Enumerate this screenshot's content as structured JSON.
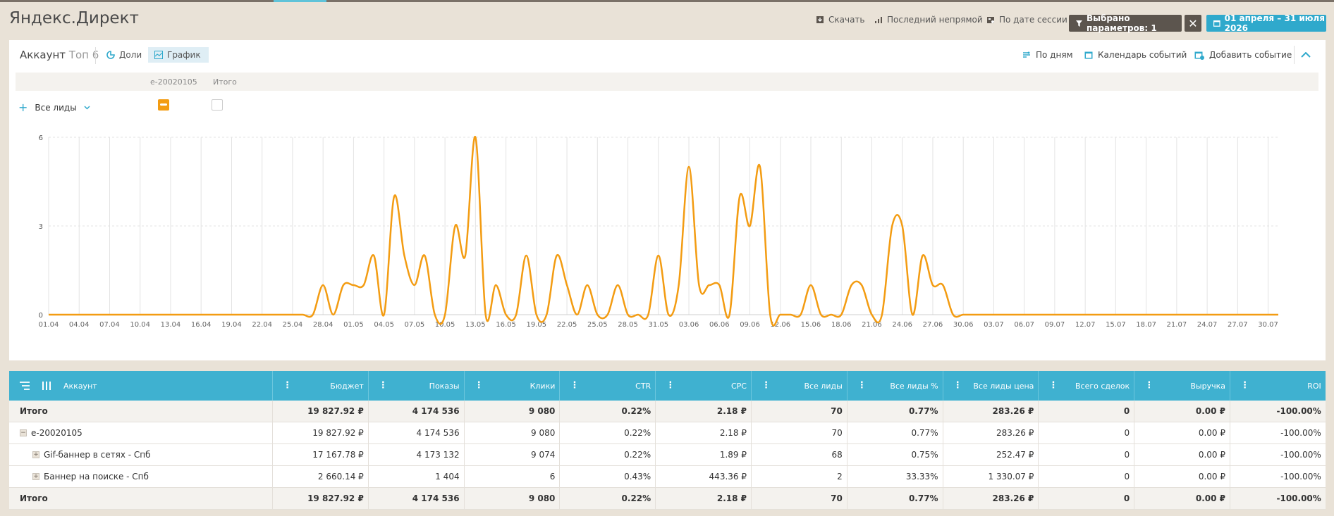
{
  "app": {
    "title": "Яндекс.Директ"
  },
  "header": {
    "download": "Скачать",
    "attribution": "Последний непрямой",
    "session": "По дате сессии",
    "params": "Выбрано параметров: 1",
    "close": "✕",
    "date_range": "01 апреля – 31 июля 2026"
  },
  "panel": {
    "title": "Аккаунт",
    "title_muted": "Топ 6",
    "tab_shares": "Доли",
    "tab_chart": "График",
    "by_days": "По дням",
    "event_calendar": "Календарь событий",
    "add_event": "Добавить событие",
    "legend_campaign": "e-20020105",
    "legend_total": "Итого",
    "metric": "Все лиды"
  },
  "colors": {
    "accent": "#2fa9cc",
    "series": "#f39c12",
    "header_dark": "#5c554e"
  },
  "chart_data": {
    "type": "line",
    "x": [
      "01.04",
      "02.04",
      "03.04",
      "04.04",
      "05.04",
      "06.04",
      "07.04",
      "08.04",
      "09.04",
      "10.04",
      "11.04",
      "12.04",
      "13.04",
      "14.04",
      "15.04",
      "16.04",
      "17.04",
      "18.04",
      "19.04",
      "20.04",
      "21.04",
      "22.04",
      "23.04",
      "24.04",
      "25.04",
      "26.04",
      "27.04",
      "28.04",
      "29.04",
      "30.04",
      "01.05",
      "02.05",
      "03.05",
      "04.05",
      "05.05",
      "06.05",
      "07.05",
      "08.05",
      "09.05",
      "10.05",
      "11.05",
      "12.05",
      "13.05",
      "14.05",
      "15.05",
      "16.05",
      "17.05",
      "18.05",
      "19.05",
      "20.05",
      "21.05",
      "22.05",
      "23.05",
      "24.05",
      "25.05",
      "26.05",
      "27.05",
      "28.05",
      "29.05",
      "30.05",
      "31.05",
      "01.06",
      "02.06",
      "03.06",
      "04.06",
      "05.06",
      "06.06",
      "07.06",
      "08.06",
      "09.06",
      "10.06",
      "11.06",
      "12.06",
      "13.06",
      "14.06",
      "15.06",
      "16.06",
      "17.06",
      "18.06",
      "19.06",
      "20.06",
      "21.06",
      "22.06",
      "23.06",
      "24.06",
      "25.06",
      "26.06",
      "27.06",
      "28.06",
      "29.06",
      "30.06",
      "01.07",
      "02.07",
      "03.07",
      "04.07",
      "05.07",
      "06.07",
      "07.07",
      "08.07",
      "09.07",
      "10.07",
      "11.07",
      "12.07",
      "13.07",
      "14.07",
      "15.07",
      "16.07",
      "17.07",
      "18.07",
      "19.07",
      "20.07",
      "21.07",
      "22.07",
      "23.07",
      "24.07",
      "25.07",
      "26.07",
      "27.07",
      "28.07",
      "29.07",
      "30.07",
      "31.07"
    ],
    "tick_labels": [
      "01.04",
      "04.04",
      "07.04",
      "10.04",
      "13.04",
      "16.04",
      "19.04",
      "22.04",
      "25.04",
      "28.04",
      "01.05",
      "04.05",
      "07.05",
      "10.05",
      "13.05",
      "16.05",
      "19.05",
      "22.05",
      "25.05",
      "28.05",
      "31.05",
      "03.06",
      "06.06",
      "09.06",
      "12.06",
      "15.06",
      "18.06",
      "21.06",
      "24.06",
      "27.06",
      "30.06",
      "03.07",
      "06.07",
      "09.07",
      "12.07",
      "15.07",
      "18.07",
      "21.07",
      "24.07",
      "27.07",
      "30.07"
    ],
    "series": [
      {
        "values": [
          0,
          0,
          0,
          0,
          0,
          0,
          0,
          0,
          0,
          0,
          0,
          0,
          0,
          0,
          0,
          0,
          0,
          0,
          0,
          0,
          0,
          0,
          0,
          0,
          0,
          0,
          0,
          1,
          0,
          1,
          1,
          1,
          2,
          0,
          4,
          2,
          1,
          2,
          0,
          0,
          3,
          2,
          6,
          0,
          1,
          0,
          0,
          2,
          0,
          0,
          2,
          1,
          0,
          1,
          0,
          0,
          1,
          0,
          0,
          0,
          2,
          0,
          1,
          5,
          1,
          1,
          1,
          0,
          4,
          3,
          5,
          0,
          0,
          0,
          0,
          1,
          0,
          0,
          0,
          1,
          1,
          0,
          0,
          3,
          3,
          0,
          2,
          1,
          1,
          0,
          0,
          0,
          0,
          0,
          0,
          0,
          0,
          0,
          0,
          0,
          0,
          0,
          0,
          0,
          0,
          0,
          0,
          0,
          0,
          0,
          0,
          0,
          0,
          0,
          0,
          0,
          0,
          0,
          0,
          0,
          0,
          0
        ]
      }
    ],
    "y_ticks": [
      "0",
      "3",
      "6"
    ],
    "ylim": [
      0,
      6
    ],
    "grid": true
  },
  "table": {
    "columns": [
      "Аккаунт",
      "Бюджет",
      "Показы",
      "Клики",
      "CTR",
      "CPC",
      "Все лиды",
      "Все лиды %",
      "Все лиды цена",
      "Всего сделок",
      "Выручка",
      "ROI"
    ],
    "rows": [
      {
        "kind": "total",
        "name": "Итого",
        "cells": [
          "19 827.92 ₽",
          "4 174 536",
          "9 080",
          "0.22%",
          "2.18 ₽",
          "70",
          "0.77%",
          "283.26 ₽",
          "0",
          "0.00 ₽",
          "-100.00%"
        ]
      },
      {
        "kind": "group",
        "name": "e-20020105",
        "cells": [
          "19 827.92 ₽",
          "4 174 536",
          "9 080",
          "0.22%",
          "2.18 ₽",
          "70",
          "0.77%",
          "283.26 ₽",
          "0",
          "0.00 ₽",
          "-100.00%"
        ]
      },
      {
        "kind": "sub",
        "name": "Gif-баннер в сетях - Спб",
        "cells": [
          "17 167.78 ₽",
          "4 173 132",
          "9 074",
          "0.22%",
          "1.89 ₽",
          "68",
          "0.75%",
          "252.47 ₽",
          "0",
          "0.00 ₽",
          "-100.00%"
        ]
      },
      {
        "kind": "sub",
        "name": "Баннер на поиске - Спб",
        "cells": [
          "2 660.14 ₽",
          "1 404",
          "6",
          "0.43%",
          "443.36 ₽",
          "2",
          "33.33%",
          "1 330.07 ₽",
          "0",
          "0.00 ₽",
          "-100.00%"
        ]
      },
      {
        "kind": "total",
        "name": "Итого",
        "cells": [
          "19 827.92 ₽",
          "4 174 536",
          "9 080",
          "0.22%",
          "2.18 ₽",
          "70",
          "0.77%",
          "283.26 ₽",
          "0",
          "0.00 ₽",
          "-100.00%"
        ]
      }
    ]
  }
}
